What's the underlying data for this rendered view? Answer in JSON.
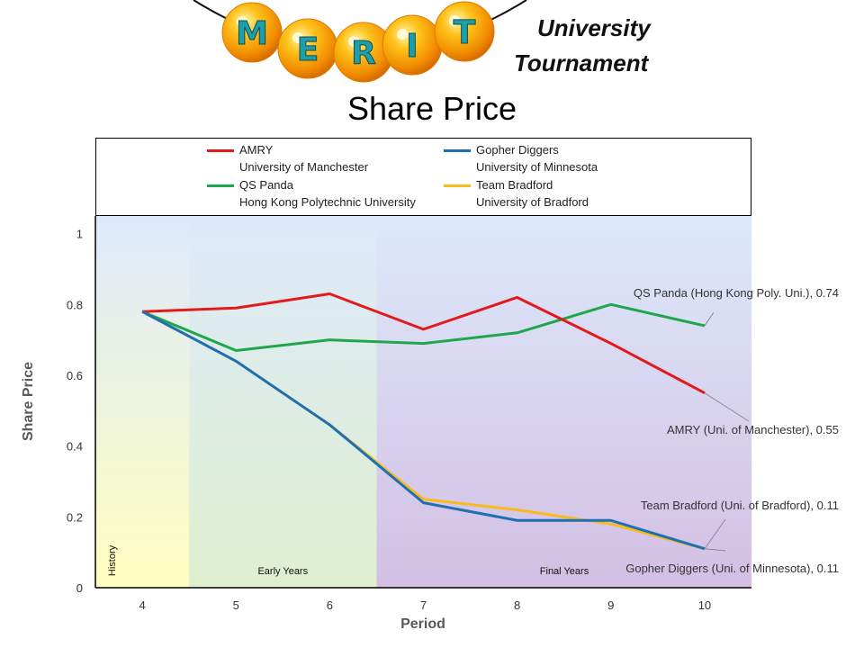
{
  "brand": {
    "logo_letters": [
      "M",
      "E",
      "R",
      "I",
      "T"
    ],
    "line1": "University",
    "line2": "Tournament"
  },
  "chart_data": {
    "type": "line",
    "title": "Share Price",
    "xlabel": "Period",
    "ylabel": "Share Price",
    "x": [
      4,
      5,
      6,
      7,
      8,
      9,
      10
    ],
    "xlim": [
      3.5,
      10.5
    ],
    "ylim": [
      0,
      1.05
    ],
    "yticks": [
      0,
      0.2,
      0.4,
      0.6,
      0.8,
      1
    ],
    "ytick_labels": [
      "0",
      "0.2",
      "0.4",
      "0.6",
      "0.8",
      "1"
    ],
    "series": [
      {
        "id": "amry",
        "name": "AMRY",
        "university": "University of Manchester",
        "color": "#e31a1c",
        "values": [
          0.78,
          0.79,
          0.83,
          0.73,
          0.82,
          0.69,
          0.55
        ],
        "callout": "AMRY (Uni. of Manchester), 0.55"
      },
      {
        "id": "qs-panda",
        "name": "QS Panda",
        "university": "Hong Kong Polytechnic University",
        "color": "#1fa64a",
        "values": [
          0.78,
          0.67,
          0.7,
          0.69,
          0.72,
          0.8,
          0.74
        ],
        "callout": "QS Panda (Hong Kong Poly. Uni.), 0.74"
      },
      {
        "id": "team-bradford",
        "name": "Team Bradford",
        "university": "University of Bradford",
        "color": "#f7bb1e",
        "values": [
          0.78,
          0.64,
          0.46,
          0.25,
          0.22,
          0.18,
          0.11
        ],
        "callout": "Team Bradford (Uni. of Bradford), 0.11"
      },
      {
        "id": "gopher-diggers",
        "name": "Gopher Diggers",
        "university": "University of Minnesota",
        "color": "#1f6fb4",
        "values": [
          0.78,
          0.64,
          0.46,
          0.24,
          0.19,
          0.19,
          0.11
        ],
        "callout": "Gopher Diggers (Uni. of Minnesota), 0.11"
      }
    ],
    "bands": [
      {
        "label": "History",
        "from": 3.5,
        "to": 4.5
      },
      {
        "label": "Early Years",
        "from": 4.5,
        "to": 6.5
      },
      {
        "label": "Final Years",
        "from": 6.5,
        "to": 10.5
      }
    ]
  }
}
